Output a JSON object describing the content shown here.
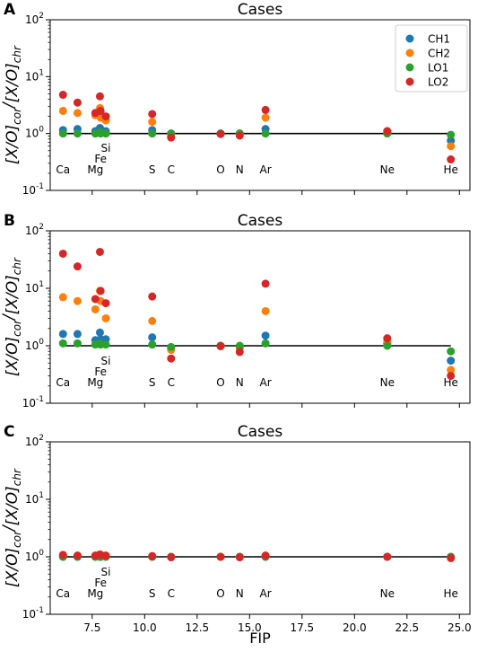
{
  "chart_data": {
    "type": "scatter",
    "xlabel": "FIP",
    "x_ticks": [
      "7.5",
      "10.0",
      "12.5",
      "15.0",
      "17.5",
      "20.0",
      "22.5",
      "25.0"
    ],
    "xlim": [
      5.5,
      25.5
    ],
    "y_scale": "log",
    "ylim": [
      0.1,
      100
    ],
    "y_ticks": [
      {
        "base": "10",
        "exp": "-1"
      },
      {
        "base": "10",
        "exp": "0"
      },
      {
        "base": "10",
        "exp": "1"
      },
      {
        "base": "10",
        "exp": "2"
      }
    ],
    "ylabel": {
      "bracket_l": "[",
      "x": "X",
      "slash": "/",
      "o": "O",
      "bracket_r": "]",
      "sub_cor": "cor",
      "sub_chr": "chr"
    },
    "reference_line": 1.0,
    "series_colors": {
      "CH1": "#1f77b4",
      "CH2": "#ff7f0e",
      "LO1": "#2ca02c",
      "LO2": "#d62728"
    },
    "legend": {
      "placement": "top-right",
      "entries": [
        "CH1",
        "CH2",
        "LO1",
        "LO2"
      ]
    },
    "element_labels": [
      {
        "name": "Ca",
        "fip": 6.11,
        "row": 0
      },
      {
        "name": "Mg",
        "fip": 7.65,
        "row": 0
      },
      {
        "name": "Fe",
        "fip": 7.9,
        "row": 1
      },
      {
        "name": "Si",
        "fip": 8.15,
        "row": 2
      },
      {
        "name": "S",
        "fip": 10.36,
        "row": 0
      },
      {
        "name": "C",
        "fip": 11.26,
        "row": 0
      },
      {
        "name": "O",
        "fip": 13.62,
        "row": 0
      },
      {
        "name": "N",
        "fip": 14.53,
        "row": 0
      },
      {
        "name": "Ar",
        "fip": 15.76,
        "row": 0
      },
      {
        "name": "Ne",
        "fip": 21.56,
        "row": 0
      },
      {
        "name": "He",
        "fip": 24.59,
        "row": 0
      }
    ],
    "panels": [
      {
        "letter": "A",
        "title": "Cases",
        "series": [
          {
            "name": "CH1",
            "x": [
              6.11,
              6.8,
              7.65,
              7.87,
              7.9,
              8.15,
              10.36,
              11.26,
              13.62,
              14.53,
              15.76,
              21.56,
              24.59
            ],
            "y": [
              1.15,
              1.2,
              1.1,
              1.25,
              1.15,
              1.1,
              1.15,
              1.0,
              1.0,
              1.0,
              1.2,
              1.05,
              0.75
            ]
          },
          {
            "name": "CH2",
            "x": [
              6.11,
              6.8,
              7.65,
              7.87,
              7.9,
              8.15,
              10.36,
              11.26,
              13.62,
              14.53,
              15.76,
              21.56,
              24.59
            ],
            "y": [
              2.5,
              2.3,
              2.1,
              2.8,
              1.9,
              1.7,
              1.6,
              0.9,
              1.0,
              1.0,
              1.9,
              1.1,
              0.6
            ]
          },
          {
            "name": "LO1",
            "x": [
              6.11,
              6.8,
              7.65,
              7.87,
              7.9,
              8.15,
              10.36,
              11.26,
              13.62,
              14.53,
              15.76,
              21.56,
              24.59
            ],
            "y": [
              1.0,
              1.0,
              1.0,
              1.05,
              1.0,
              1.0,
              1.0,
              1.0,
              1.0,
              1.0,
              1.0,
              1.0,
              0.95
            ]
          },
          {
            "name": "LO2",
            "x": [
              6.11,
              6.8,
              7.65,
              7.87,
              7.9,
              8.15,
              10.36,
              11.26,
              13.62,
              14.53,
              15.76,
              21.56,
              24.59
            ],
            "y": [
              4.8,
              3.5,
              2.3,
              4.5,
              2.5,
              2.0,
              2.2,
              0.85,
              0.98,
              0.92,
              2.6,
              1.1,
              0.35
            ]
          }
        ]
      },
      {
        "letter": "B",
        "title": "Cases",
        "series": [
          {
            "name": "CH1",
            "x": [
              6.11,
              6.8,
              7.65,
              7.87,
              7.9,
              8.15,
              10.36,
              11.26,
              13.62,
              14.53,
              15.76,
              21.56,
              24.59
            ],
            "y": [
              1.6,
              1.6,
              1.25,
              1.7,
              1.3,
              1.3,
              1.4,
              0.9,
              1.0,
              0.95,
              1.5,
              1.1,
              0.55
            ]
          },
          {
            "name": "CH2",
            "x": [
              6.11,
              6.8,
              7.65,
              7.87,
              7.9,
              8.15,
              10.36,
              11.26,
              13.62,
              14.53,
              15.76,
              21.56,
              24.59
            ],
            "y": [
              7.0,
              6.0,
              4.3,
              9.0,
              6.0,
              3.0,
              2.7,
              0.85,
              1.0,
              0.9,
              4.0,
              1.2,
              0.38
            ]
          },
          {
            "name": "LO1",
            "x": [
              6.11,
              6.8,
              7.65,
              7.87,
              7.9,
              8.15,
              10.36,
              11.26,
              13.62,
              14.53,
              15.76,
              21.56,
              24.59
            ],
            "y": [
              1.1,
              1.1,
              1.05,
              1.1,
              1.05,
              1.05,
              1.05,
              0.95,
              1.0,
              1.0,
              1.1,
              1.0,
              0.8
            ]
          },
          {
            "name": "LO2",
            "x": [
              6.11,
              6.8,
              7.65,
              7.87,
              7.9,
              8.15,
              10.36,
              11.26,
              13.62,
              14.53,
              15.76,
              21.56,
              24.59
            ],
            "y": [
              40.0,
              24.0,
              6.5,
              43.0,
              9.0,
              5.5,
              7.2,
              0.6,
              0.98,
              0.78,
              12.0,
              1.35,
              0.3
            ]
          }
        ]
      },
      {
        "letter": "C",
        "title": "Cases",
        "series": [
          {
            "name": "CH1",
            "x": [
              6.11,
              6.8,
              7.65,
              7.87,
              7.9,
              8.15,
              10.36,
              11.26,
              13.62,
              14.53,
              15.76,
              21.56,
              24.59
            ],
            "y": [
              1.0,
              1.0,
              1.0,
              1.0,
              1.0,
              1.0,
              1.0,
              1.0,
              1.0,
              1.0,
              1.0,
              1.0,
              1.0
            ]
          },
          {
            "name": "CH2",
            "x": [
              6.11,
              6.8,
              7.65,
              7.87,
              7.9,
              8.15,
              10.36,
              11.26,
              13.62,
              14.53,
              15.76,
              21.56,
              24.59
            ],
            "y": [
              1.05,
              1.05,
              1.05,
              1.05,
              1.05,
              1.05,
              1.0,
              1.0,
              1.0,
              1.0,
              1.05,
              1.0,
              0.98
            ]
          },
          {
            "name": "LO1",
            "x": [
              6.11,
              6.8,
              7.65,
              7.87,
              7.9,
              8.15,
              10.36,
              11.26,
              13.62,
              14.53,
              15.76,
              21.56,
              24.59
            ],
            "y": [
              1.0,
              1.0,
              1.0,
              1.0,
              1.0,
              1.0,
              1.0,
              1.0,
              1.0,
              1.0,
              1.0,
              1.0,
              1.0
            ]
          },
          {
            "name": "LO2",
            "x": [
              6.11,
              6.8,
              7.65,
              7.87,
              7.9,
              8.15,
              10.36,
              11.26,
              13.62,
              14.53,
              15.76,
              21.56,
              24.59
            ],
            "y": [
              1.08,
              1.05,
              1.05,
              1.1,
              1.08,
              1.05,
              1.03,
              0.98,
              1.0,
              0.98,
              1.05,
              1.0,
              0.95
            ]
          }
        ]
      }
    ]
  }
}
